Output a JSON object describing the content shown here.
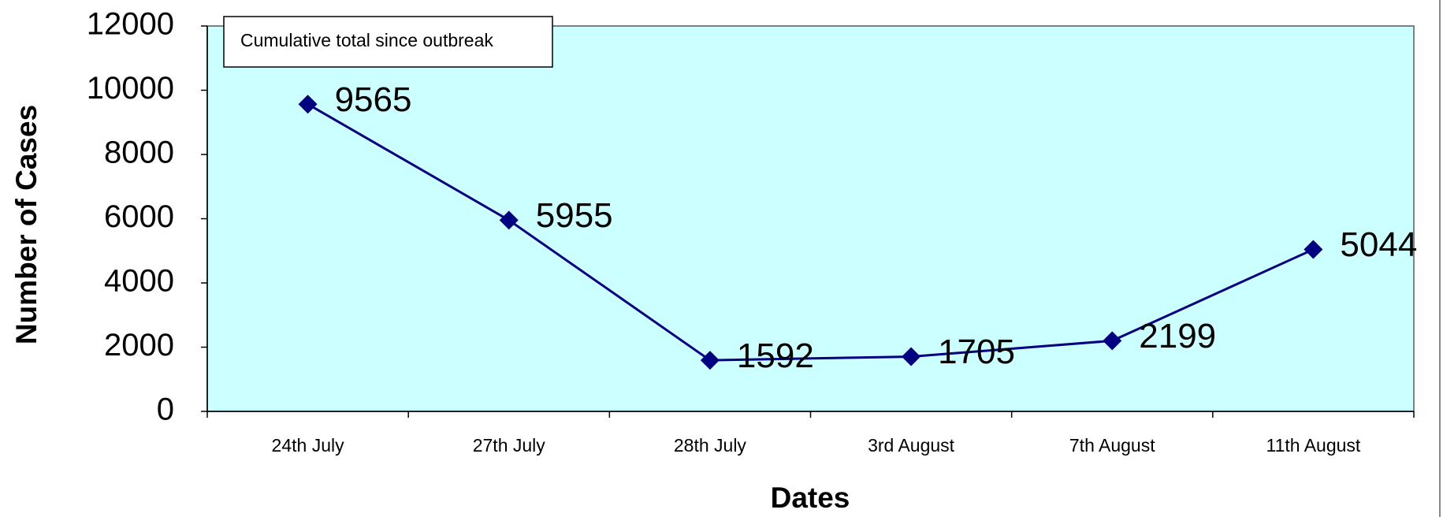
{
  "chart_data": {
    "type": "line",
    "annotation": "Cumulative total since outbreak",
    "y_label": "Number of Cases",
    "x_label": "Dates",
    "categories": [
      "24th July",
      "27th July",
      "28th July",
      "3rd August",
      "7th August",
      "11th August"
    ],
    "values": [
      9565,
      5955,
      1592,
      1705,
      2199,
      5044
    ],
    "color": "#000080",
    "plot_background": "#ccffff",
    "ylim": [
      0,
      12000
    ],
    "yticks": [
      0,
      2000,
      4000,
      6000,
      8000,
      10000,
      12000
    ],
    "grid": false,
    "data_labels": true
  }
}
